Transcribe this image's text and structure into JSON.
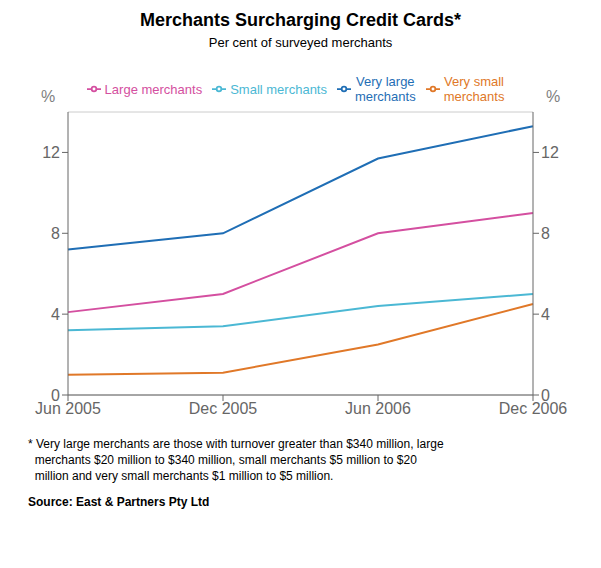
{
  "chart_data": {
    "type": "line",
    "title": "Merchants Surcharging Credit Cards*",
    "subtitle": "Per cent of surveyed merchants",
    "ylabel": "%",
    "y2label": "%",
    "categories": [
      "Jun 2005",
      "Dec 2005",
      "Jun 2006",
      "Dec 2006"
    ],
    "series": [
      {
        "name": "Very large\nmerchants",
        "color": "#1f6eb5",
        "values": [
          7.2,
          8.0,
          11.7,
          13.3
        ]
      },
      {
        "name": "Large merchants",
        "color": "#d44fa0",
        "values": [
          4.1,
          5.0,
          8.0,
          9.0
        ]
      },
      {
        "name": "Small merchants",
        "color": "#4bb8d4",
        "values": [
          3.2,
          3.4,
          4.4,
          5.0
        ]
      },
      {
        "name": "Very small\nmerchants",
        "color": "#e07828",
        "values": [
          1.0,
          1.1,
          2.5,
          4.5
        ]
      }
    ],
    "ylim": [
      0,
      14
    ],
    "yticks": [
      0,
      4,
      8,
      12
    ],
    "y2lim": [
      0,
      14
    ],
    "y2ticks": [
      0,
      4,
      8,
      12
    ],
    "grid": true,
    "legend": "top",
    "notes": [
      "* Very large merchants are those with turnover greater than $340 million, large",
      "  merchants $20 million to $340 million, small merchants $5 million to $20",
      "  million and very small merchants $1 million to $5 million."
    ],
    "source": "Source: East & Partners Pty Ltd"
  }
}
